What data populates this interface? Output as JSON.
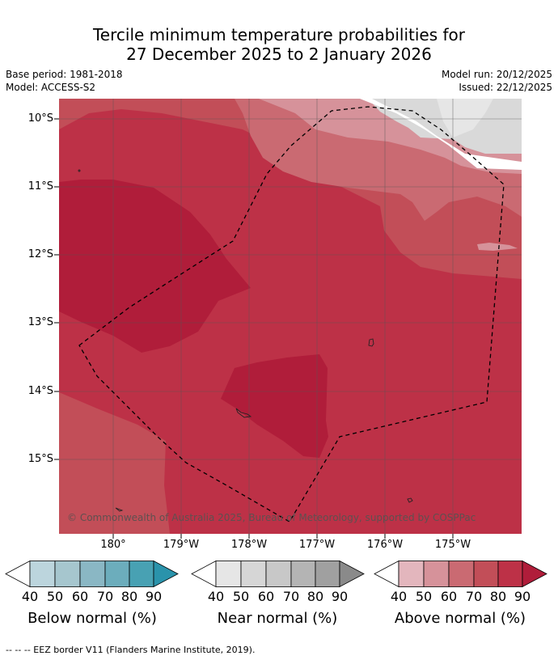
{
  "title": {
    "line1": "Tercile minimum temperature probabilities for",
    "line2": "27 December 2025 to 2 January 2026"
  },
  "meta": {
    "base_period": "Base period: 1981-2018",
    "model": "Model: ACCESS-S2",
    "model_run": "Model run: 20/12/2025",
    "issued": "Issued: 22/12/2025"
  },
  "map": {
    "lat_labels": [
      "10°S",
      "11°S",
      "12°S",
      "13°S",
      "14°S",
      "15°S"
    ],
    "lon_labels": [
      "180°",
      "179°W",
      "178°W",
      "177°W",
      "176°W",
      "175°W"
    ],
    "copyright": "© Commonwealth of Australia 2025, Bureau of Meteorology, supported by COSPPac",
    "colors": {
      "above_90": "#b01d3a",
      "above_80": "#bd3147",
      "above_70": "#c24e58",
      "above_60": "#ca6a72",
      "above_50": "#d6929a",
      "near": "#d9d9d9",
      "near_light": "#e6e6e6"
    }
  },
  "colorbars": [
    {
      "title": "Below normal (%)",
      "ticks": [
        "40",
        "50",
        "60",
        "70",
        "80",
        "90"
      ],
      "colors": [
        "#bcd5dd",
        "#a6c6ce",
        "#8ab7c4",
        "#6cadbc",
        "#48a1b3",
        "#2a93ab"
      ]
    },
    {
      "title": "Near normal (%)",
      "ticks": [
        "40",
        "50",
        "60",
        "70",
        "80",
        "90"
      ],
      "colors": [
        "#e6e6e6",
        "#d6d6d6",
        "#c8c8c8",
        "#b4b4b4",
        "#a0a0a0",
        "#8a8a8a"
      ]
    },
    {
      "title": "Above normal (%)",
      "ticks": [
        "40",
        "50",
        "60",
        "70",
        "80",
        "90"
      ],
      "colors": [
        "#e3b6bd",
        "#d6929a",
        "#ca6a72",
        "#c24e58",
        "#bd3147",
        "#b01d3a"
      ]
    }
  ],
  "footer": "--  --  -- EEZ border V11 (Flanders Marine Institute, 2019)."
}
